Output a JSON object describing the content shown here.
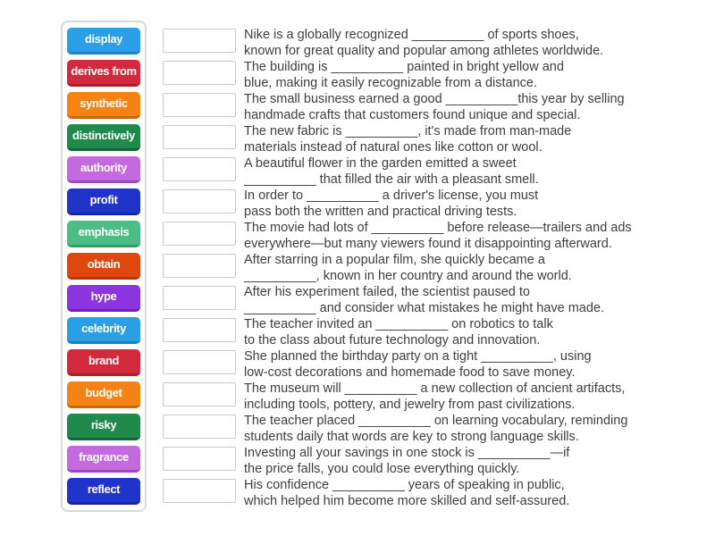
{
  "activity": {
    "type": "match-up-exercise",
    "panel_border_color": "#d8d8d8",
    "dropzone_border_color": "#c9c9c9",
    "sentence_text_color": "#3e3e3e"
  },
  "tiles": [
    {
      "label": "display",
      "color": "#2B9FE6",
      "shade": "#1C80C4"
    },
    {
      "label": "derives from",
      "color": "#D2293C",
      "shade": "#AA1F30"
    },
    {
      "label": "synthetic",
      "color": "#F58313",
      "shade": "#C86708"
    },
    {
      "label": "distinctively",
      "color": "#1F8A4C",
      "shade": "#156538"
    },
    {
      "label": "authority",
      "color": "#C569DE",
      "shade": "#A046BC"
    },
    {
      "label": "profit",
      "color": "#2134C9",
      "shade": "#1824A0"
    },
    {
      "label": "emphasis",
      "color": "#4CBE85",
      "shade": "#389A67"
    },
    {
      "label": "obtain",
      "color": "#E0470F",
      "shade": "#B5370A"
    },
    {
      "label": "hype",
      "color": "#8B35E0",
      "shade": "#6B22B8"
    },
    {
      "label": "celebrity",
      "color": "#2B9FE6",
      "shade": "#1C80C4"
    },
    {
      "label": "brand",
      "color": "#D2293C",
      "shade": "#AA1F30"
    },
    {
      "label": "budget",
      "color": "#F58313",
      "shade": "#C86708"
    },
    {
      "label": "risky",
      "color": "#1F8A4C",
      "shade": "#156538"
    },
    {
      "label": "fragrance",
      "color": "#C569DE",
      "shade": "#A046BC"
    },
    {
      "label": "reflect",
      "color": "#2134C9",
      "shade": "#1824A0"
    }
  ],
  "items": [
    {
      "line1": "Nike is a globally recognized __________ of sports shoes,",
      "line2": "known for great quality and popular among athletes worldwide."
    },
    {
      "line1": "The building is __________ painted in bright yellow and",
      "line2": "blue, making it easily recognizable from a distance."
    },
    {
      "line1": "The small business earned a good __________this year by selling",
      "line2": "handmade crafts that customers found unique and special."
    },
    {
      "line1": "The new fabric is __________, it's made from man-made",
      "line2": "materials instead of natural ones like cotton or wool."
    },
    {
      "line1": "A beautiful flower in the garden emitted a sweet",
      "line2": "__________ that filled the air with a pleasant smell."
    },
    {
      "line1": "In order to __________ a driver's license, you must",
      "line2": "pass both the written and practical driving tests."
    },
    {
      "line1": "The movie had lots of __________ before release—trailers and ads",
      "line2": "everywhere—but many viewers found it disappointing afterward."
    },
    {
      "line1": "After starring in a popular film, she quickly became a",
      "line2": "__________, known in her country and around the world."
    },
    {
      "line1": "After his experiment failed, the scientist paused to",
      "line2": "__________ and consider what mistakes he might have made."
    },
    {
      "line1": "The teacher invited an __________ on robotics to talk",
      "line2": "to the class about future technology and innovation."
    },
    {
      "line1": "She planned the birthday party on a tight __________, using",
      "line2": "low-cost decorations and homemade food to save money."
    },
    {
      "line1": "The museum will __________ a new collection of ancient artifacts,",
      "line2": "including tools, pottery, and jewelry from past civilizations."
    },
    {
      "line1": "The teacher placed __________ on learning vocabulary, reminding",
      "line2": "students daily that words are key to strong language skills."
    },
    {
      "line1": "Investing all your savings in one stock is __________—if",
      "line2": "the price falls, you could lose everything quickly."
    },
    {
      "line1": "His confidence __________ years of speaking in public,",
      "line2": "which helped him become more skilled and self-assured."
    }
  ]
}
